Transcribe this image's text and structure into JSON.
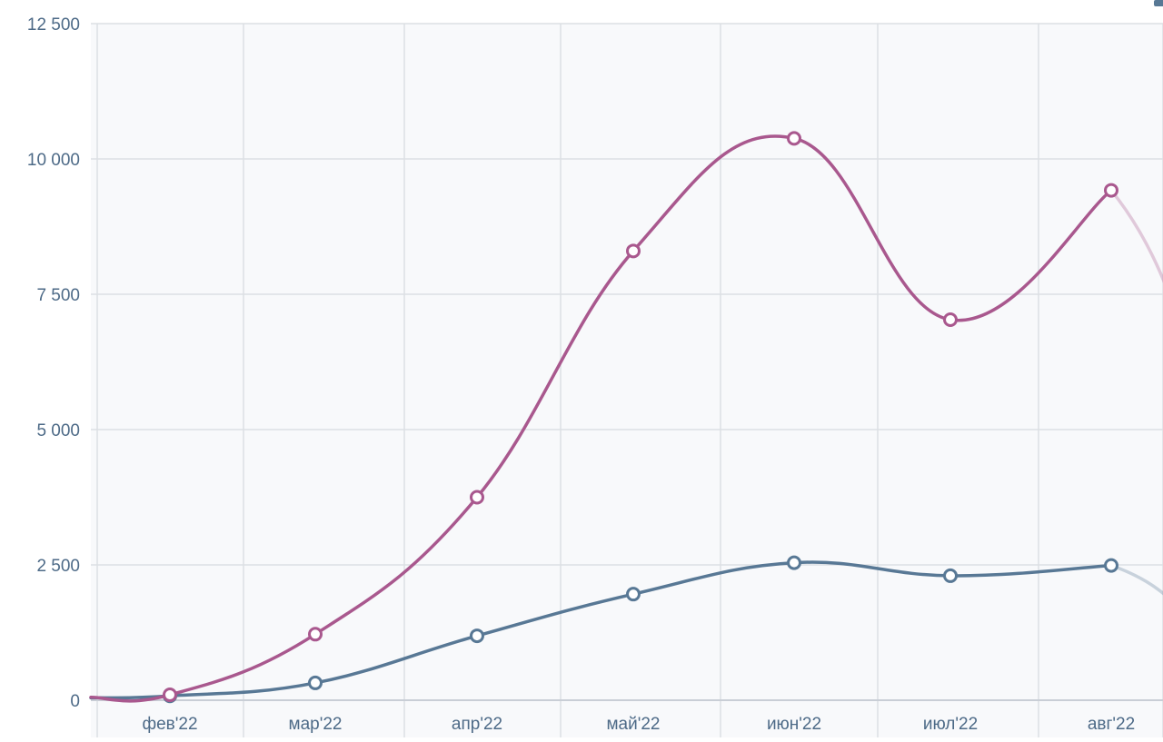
{
  "chart_data": {
    "type": "line",
    "categories": [
      "фев'22",
      "мар'22",
      "апр'22",
      "май'22",
      "июн'22",
      "июл'22",
      "авг'22"
    ],
    "series": [
      {
        "color": "#a9588e",
        "values": [
          100,
          1220,
          3750,
          8300,
          10380,
          7030,
          9420
        ]
      },
      {
        "color": "#587895",
        "values": [
          80,
          320,
          1190,
          1960,
          2540,
          2300,
          2490
        ]
      }
    ],
    "y_ticks": [
      "0",
      "2 500",
      "5 000",
      "7 500",
      "10 000",
      "12 500"
    ],
    "y_tick_values": [
      0,
      2500,
      5000,
      7500,
      10000,
      12500
    ],
    "ylim": [
      0,
      12500
    ],
    "grid": true,
    "colors": {
      "plot_background": "#f8f9fb",
      "grid": "#dcdfe4",
      "tick_label": "#4d6a87"
    }
  }
}
